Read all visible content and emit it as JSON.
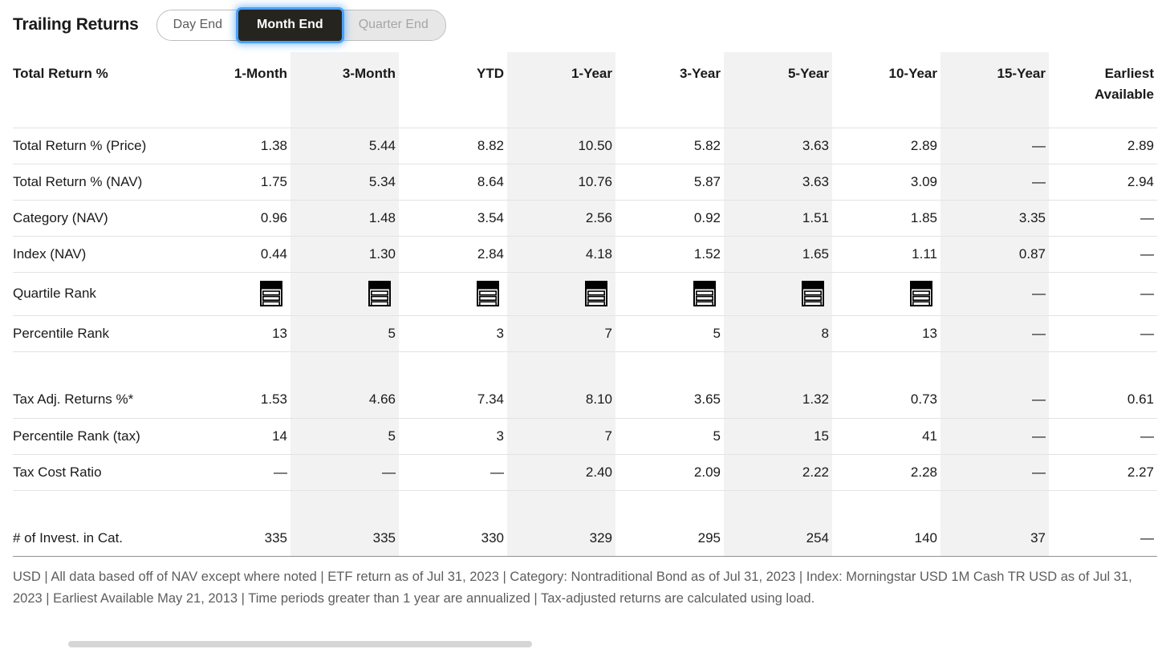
{
  "title": "Trailing Returns",
  "toggle": {
    "options": [
      {
        "label": "Day End",
        "selected": false
      },
      {
        "label": "Month End",
        "selected": true
      },
      {
        "label": "Quarter End",
        "selected": false
      }
    ],
    "focus_ring_color": "#4aa1f7",
    "selected_bg_color": "#26241e"
  },
  "table": {
    "label_header": "Total Return %",
    "columns": [
      "1-Month",
      "3-Month",
      "YTD",
      "1-Year",
      "3-Year",
      "5-Year",
      "10-Year",
      "15-Year",
      "Earliest Available"
    ],
    "striped_columns": [
      "3-Month",
      "1-Year",
      "5-Year",
      "15-Year"
    ],
    "stripe_color": "#f2f2f2",
    "quartile_icon_name": "performance-quartile-1-icon",
    "rows": [
      {
        "label": "Total Return % (Price)",
        "values": [
          "1.38",
          "5.44",
          "8.82",
          "10.50",
          "5.82",
          "3.63",
          "2.89",
          "—",
          "2.89"
        ]
      },
      {
        "label": "Total Return % (NAV)",
        "values": [
          "1.75",
          "5.34",
          "8.64",
          "10.76",
          "5.87",
          "3.63",
          "3.09",
          "—",
          "2.94"
        ]
      },
      {
        "label": "Category (NAV)",
        "values": [
          "0.96",
          "1.48",
          "3.54",
          "2.56",
          "0.92",
          "1.51",
          "1.85",
          "3.35",
          "—"
        ]
      },
      {
        "label": "Index (NAV)",
        "values": [
          "0.44",
          "1.30",
          "2.84",
          "4.18",
          "1.52",
          "1.65",
          "1.11",
          "0.87",
          "—"
        ]
      },
      {
        "label": "Quartile Rank",
        "values": [
          "q1",
          "q1",
          "q1",
          "q1",
          "q1",
          "q1",
          "q1",
          "—",
          "—"
        ]
      },
      {
        "label": "Percentile Rank",
        "values": [
          "13",
          "5",
          "3",
          "7",
          "5",
          "8",
          "13",
          "—",
          "—"
        ]
      },
      {
        "label": "Tax Adj. Returns %*",
        "values": [
          "1.53",
          "4.66",
          "7.34",
          "8.10",
          "3.65",
          "1.32",
          "0.73",
          "—",
          "0.61"
        ]
      },
      {
        "label": "Percentile Rank (tax)",
        "values": [
          "14",
          "5",
          "3",
          "7",
          "5",
          "15",
          "41",
          "—",
          "—"
        ]
      },
      {
        "label": "Tax Cost Ratio",
        "values": [
          "—",
          "—",
          "—",
          "2.40",
          "2.09",
          "2.22",
          "2.28",
          "—",
          "2.27"
        ]
      },
      {
        "label": "# of Invest. in Cat.",
        "values": [
          "335",
          "335",
          "330",
          "329",
          "295",
          "254",
          "140",
          "37",
          "—"
        ]
      }
    ]
  },
  "footnote": "USD | All data based off of NAV except where noted | ETF return as of Jul 31, 2023 |  Category: Nontraditional Bond as of Jul 31, 2023 |  Index: Morningstar USD 1M Cash TR USD as of Jul 31, 2023 |  Earliest Available May 21, 2013 |  Time periods greater than 1 year are annualized  | Tax-adjusted returns are calculated using load."
}
